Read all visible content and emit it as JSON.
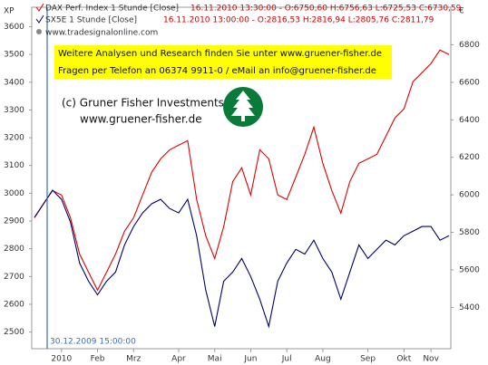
{
  "chart_data": {
    "type": "line",
    "corner_left": "XP",
    "corner_right": "€",
    "source": "www.tradesignalonline.com",
    "banner": [
      "Weitere Analysen und Research finden Sie unter www.gruener-fisher.de",
      "Fragen per Telefon an 06374 9911-0 / eMail an info@gruener-fisher.de"
    ],
    "copyright": [
      "(c) Gruner Fisher Investments",
      "www.gruener-fisher.de"
    ],
    "cursor_label": "30.12.2009 15:00:00",
    "categories": [
      null,
      null,
      null,
      "2010",
      null,
      null,
      null,
      "Feb",
      null,
      null,
      null,
      "Mrz",
      null,
      null,
      null,
      null,
      "Apr",
      null,
      null,
      null,
      "Mai",
      null,
      null,
      null,
      "Jun",
      null,
      null,
      null,
      "Jul",
      null,
      null,
      null,
      "Aug",
      null,
      null,
      null,
      null,
      "Sep",
      null,
      null,
      null,
      "Okt",
      null,
      null,
      "Nov",
      null,
      null
    ],
    "series": [
      {
        "name": "DAX Perf. Index 1 Stunde [Close]",
        "info": "16.11.2010 13:30:00 - O:6750,60 H:6756,63 L:6725,53 C:6730,59",
        "color": "#e00000",
        "axis": "y2",
        "values": [
          5878,
          5951,
          6023,
          5999,
          5878,
          5685,
          5588,
          5492,
          5588,
          5685,
          5806,
          5878,
          5999,
          6120,
          6192,
          6240,
          6265,
          6289,
          5975,
          5782,
          5661,
          5830,
          6071,
          6144,
          5999,
          6240,
          6192,
          5999,
          5975,
          6095,
          6216,
          6361,
          6168,
          6023,
          5902,
          6071,
          6168,
          6192,
          6216,
          6313,
          6410,
          6458,
          6603,
          6651,
          6700,
          6772,
          6748
        ]
      },
      {
        "name": "SX5E 1 Stunde [Close]",
        "info": "16.11.2010 13:00:00 - O:2816,53 H:2816,94 L:2805,76 C:2811,79",
        "color": "#000066",
        "values": [
          2913,
          2962,
          3011,
          2978,
          2896,
          2749,
          2683,
          2634,
          2683,
          2716,
          2814,
          2880,
          2929,
          2962,
          2978,
          2945,
          2929,
          2978,
          2847,
          2651,
          2520,
          2683,
          2716,
          2765,
          2700,
          2618,
          2520,
          2683,
          2749,
          2798,
          2781,
          2831,
          2765,
          2716,
          2618,
          2716,
          2814,
          2765,
          2798,
          2831,
          2814,
          2847,
          2863,
          2880,
          2880,
          2831,
          2847
        ]
      }
    ],
    "ylim": [
      2440,
      3670
    ],
    "yticks": [
      2500,
      2600,
      2700,
      2800,
      2900,
      3000,
      3100,
      3200,
      3300,
      3400,
      3500,
      3600
    ],
    "y2lim": [
      5180,
      7000
    ],
    "y2ticks": [
      5400,
      5600,
      5800,
      6000,
      6200,
      6400,
      6600,
      6800
    ]
  }
}
